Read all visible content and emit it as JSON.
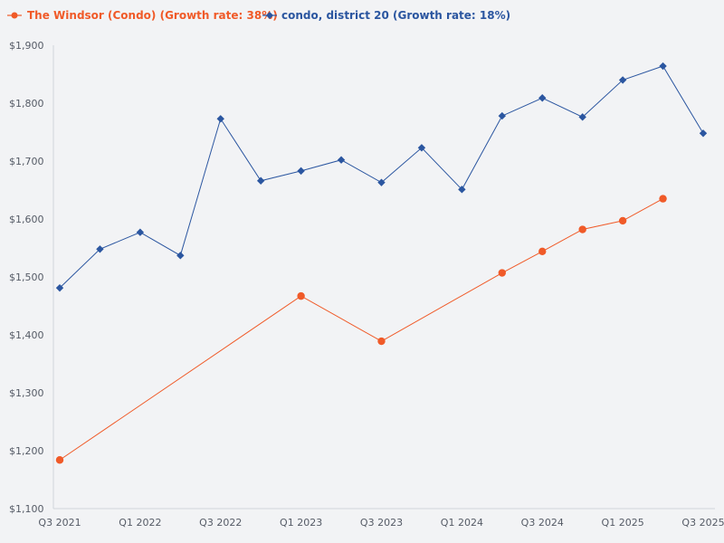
{
  "chart_data": {
    "type": "line",
    "title": "",
    "xlabel": "",
    "ylabel": "",
    "ylim": [
      1100,
      1900
    ],
    "y_ticks": [
      1100,
      1200,
      1300,
      1400,
      1500,
      1600,
      1700,
      1800,
      1900
    ],
    "y_tick_labels": [
      "$1,100",
      "$1,200",
      "$1,300",
      "$1,400",
      "$1,500",
      "$1,600",
      "$1,700",
      "$1,800",
      "$1,900"
    ],
    "x_categories": [
      "Q3 2021",
      "Q4 2021",
      "Q1 2022",
      "Q2 2022",
      "Q3 2022",
      "Q4 2022",
      "Q1 2023",
      "Q2 2023",
      "Q3 2023",
      "Q4 2023",
      "Q1 2024",
      "Q2 2024",
      "Q3 2024",
      "Q4 2024",
      "Q1 2025",
      "Q2 2025",
      "Q3 2025"
    ],
    "x_tick_labels": [
      "Q3 2021",
      "",
      "Q1 2022",
      "",
      "Q3 2022",
      "",
      "Q1 2023",
      "",
      "Q3 2023",
      "",
      "Q1 2024",
      "",
      "Q3 2024",
      "",
      "Q1 2025",
      "",
      "Q3 2025"
    ],
    "grid": false,
    "legend_position": "top-left",
    "series": [
      {
        "name": "The Windsor (Condo) (Growth rate: 38%)",
        "color": "#f05a28",
        "marker": "circle",
        "values": [
          1184,
          null,
          null,
          null,
          null,
          null,
          1467,
          null,
          1389,
          null,
          null,
          1507,
          1544,
          1582,
          1597,
          1635,
          null
        ]
      },
      {
        "name": "condo, district 20 (Growth rate: 18%)",
        "color": "#2b56a0",
        "marker": "diamond",
        "values": [
          1481,
          1548,
          1577,
          1537,
          1773,
          1666,
          1683,
          1702,
          1663,
          1723,
          1651,
          1778,
          1809,
          1776,
          1840,
          1864,
          1748
        ]
      }
    ]
  },
  "colors": {
    "background": "#f2f3f5",
    "axis": "#d0d4da",
    "tick_text": "#555b66"
  }
}
